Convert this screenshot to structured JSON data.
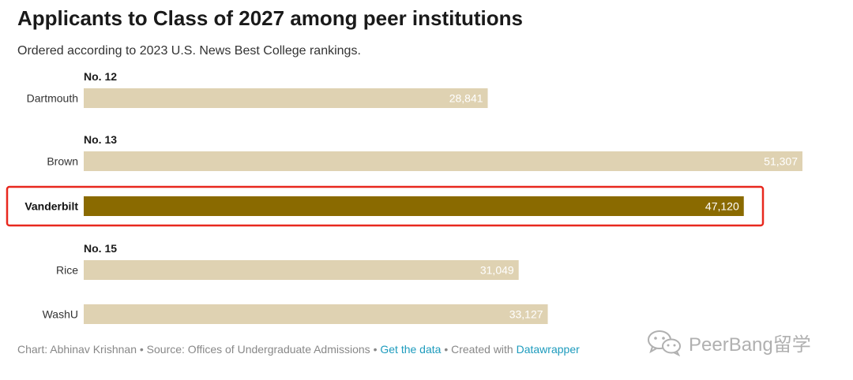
{
  "title": "Applicants to Class of 2027 among peer institutions",
  "subtitle": "Ordered according to 2023 U.S. News Best College rankings.",
  "colors": {
    "bar": "#dfd2b2",
    "highlight_bar": "#8a6a00",
    "highlight_box": "#e8281e",
    "link": "#1d9bbd"
  },
  "chart_data": {
    "type": "bar",
    "orientation": "horizontal",
    "categories": [
      "Dartmouth",
      "Brown",
      "Vanderbilt",
      "Rice",
      "WashU"
    ],
    "values": [
      28841,
      51307,
      47120,
      31049,
      33127
    ],
    "value_labels": [
      "28,841",
      "51,307",
      "47,120",
      "31,049",
      "33,127"
    ],
    "group_labels": [
      "No. 12",
      "No. 13",
      "",
      "No. 15",
      ""
    ],
    "highlight": "Vanderbilt",
    "xlim": [
      0,
      51307
    ],
    "grid": false
  },
  "footer": {
    "chart_by": "Chart: Abhinav Krishnan",
    "sep1": " • ",
    "source": "Source: Offices of Undergraduate Admissions",
    "sep2": " • ",
    "get_data": "Get the data",
    "sep3": " • ",
    "created_with": "Created with ",
    "tool": "Datawrapper"
  },
  "watermark": {
    "text": "PeerBang留学",
    "icon": "wechat-icon"
  }
}
